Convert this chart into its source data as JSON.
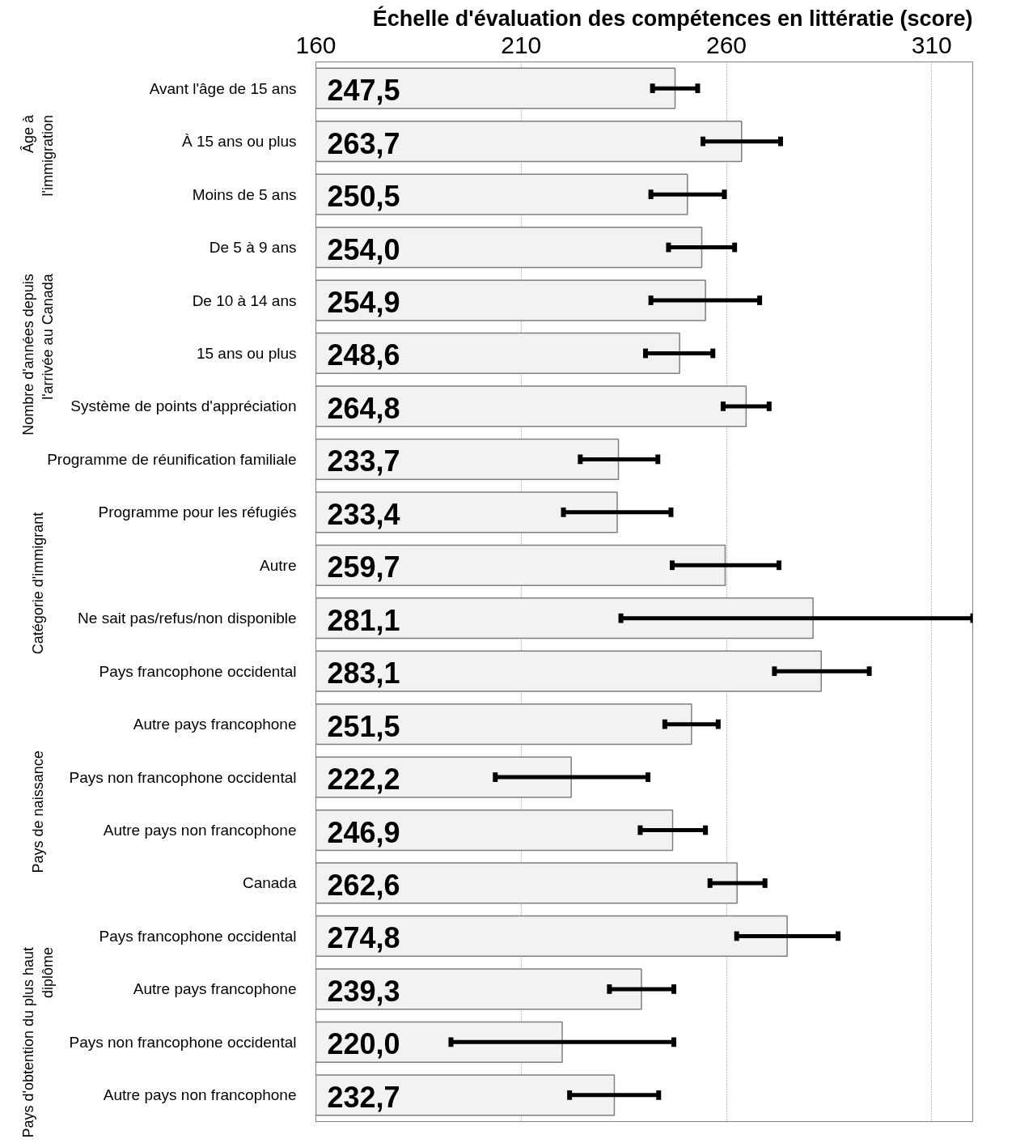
{
  "chart_data": {
    "type": "bar",
    "orientation": "horizontal",
    "title": "Échelle d'évaluation des compétences en littératie (score)",
    "categories": [
      "Avant l'âge de 15 ans",
      "À 15 ans ou plus",
      "Moins de 5 ans",
      "De 5 à 9 ans",
      "De 10 à 14 ans",
      "15 ans ou plus",
      "Système de points d'appréciation",
      "Programme de réunification familiale",
      "Programme pour les réfugiés",
      "Autre",
      "Ne sait pas/refus/non disponible",
      "Pays francophone occidental",
      "Autre pays francophone",
      "Pays non francophone occidental",
      "Autre pays non francophone",
      "Canada",
      "Pays francophone occidental",
      "Autre pays francophone",
      "Pays non francophone occidental",
      "Autre pays non francophone"
    ],
    "values": [
      247.5,
      263.7,
      250.5,
      254.0,
      254.9,
      248.6,
      264.8,
      233.7,
      233.4,
      259.7,
      281.1,
      283.1,
      251.5,
      222.2,
      246.9,
      262.6,
      274.8,
      239.3,
      220.0,
      232.7
    ],
    "value_labels": [
      "247,5",
      "263,7",
      "250,5",
      "254,0",
      "254,9",
      "248,6",
      "264,8",
      "233,7",
      "233,4",
      "259,7",
      "281,1",
      "283,1",
      "251,5",
      "222,2",
      "246,9",
      "262,6",
      "274,8",
      "239,3",
      "220,0",
      "232,7"
    ],
    "errors": [
      [
        242.0,
        253.0
      ],
      [
        254.3,
        273.2
      ],
      [
        241.6,
        259.5
      ],
      [
        245.9,
        262.0
      ],
      [
        241.6,
        268.1
      ],
      [
        240.3,
        256.7
      ],
      [
        259.2,
        270.4
      ],
      [
        224.4,
        243.3
      ],
      [
        220.3,
        246.5
      ],
      [
        246.8,
        272.8
      ],
      [
        234.3,
        320
      ],
      [
        271.7,
        294.8
      ],
      [
        245.0,
        258.0
      ],
      [
        203.7,
        240.9
      ],
      [
        239.0,
        254.9
      ],
      [
        256.0,
        269.4
      ],
      [
        262.5,
        287.2
      ],
      [
        231.5,
        247.2
      ],
      [
        192.9,
        247.2
      ],
      [
        221.8,
        243.5
      ]
    ],
    "color": "#f2f2f2",
    "xlim": [
      160,
      320
    ],
    "xticks": [
      160,
      210,
      260,
      310
    ],
    "grid": "x",
    "annotations": [
      "Âge à\nl'immigration",
      "Nombre d'années depuis\nl'arrivée au Canada",
      "Catégorie d'immigrant",
      "Pays de naissance",
      "Pays d'obtention du plus haut\ndiplôme"
    ]
  }
}
